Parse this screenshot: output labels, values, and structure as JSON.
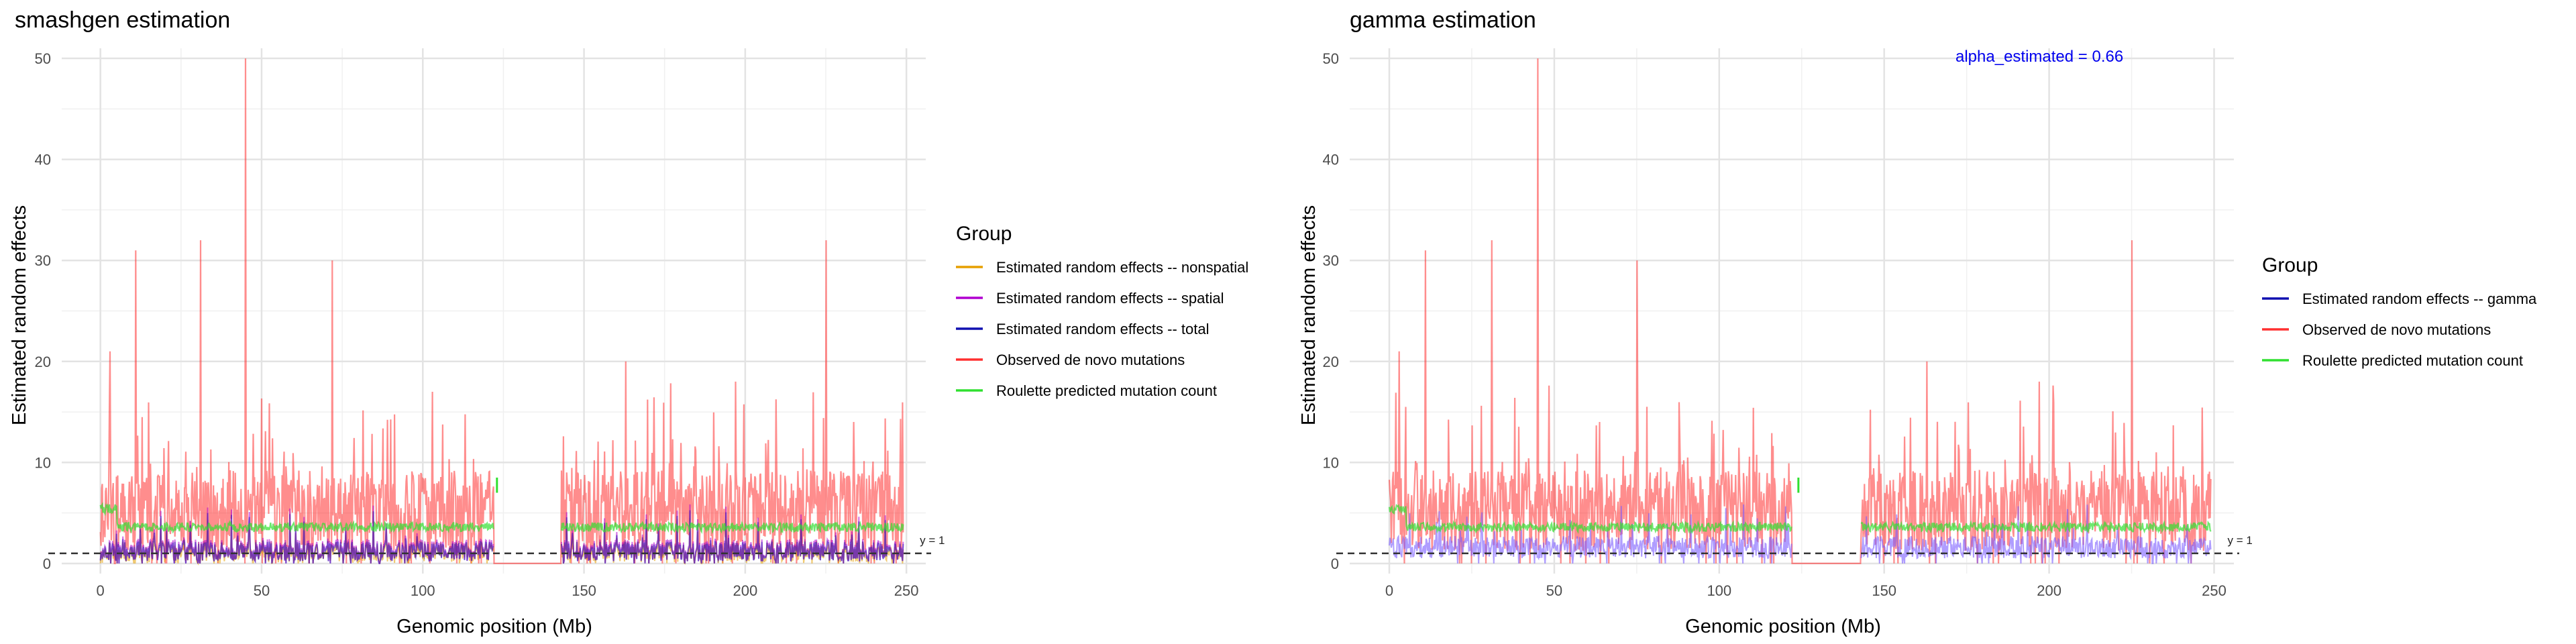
{
  "chart_data": [
    {
      "type": "line",
      "title": "smashgen estimation",
      "xlabel": "Genomic position (Mb)",
      "ylabel": "Estimated random effects",
      "xlim": [
        -12,
        256
      ],
      "ylim": [
        -1,
        51
      ],
      "x_ticks": [
        0,
        50,
        100,
        150,
        200,
        250
      ],
      "y_ticks": [
        0,
        10,
        20,
        30,
        40,
        50
      ],
      "grid": true,
      "legend_position": "right",
      "legend_title": "Group",
      "reference_line": {
        "y": 1,
        "label": "y = 1",
        "style": "dashed"
      },
      "annotation": "",
      "series": [
        {
          "name": "Estimated random effects -- nonspatial",
          "color": "#E69F00",
          "kind": "nonspatial"
        },
        {
          "name": "Estimated random effects -- spatial",
          "color": "#B000D0",
          "kind": "spatial"
        },
        {
          "name": "Estimated random effects -- total",
          "color": "#1010B0",
          "kind": "total"
        },
        {
          "name": "Observed de novo mutations",
          "color": "#FF3030",
          "kind": "observed"
        },
        {
          "name": "Roulette predicted mutation count",
          "color": "#30E030",
          "kind": "roulette"
        }
      ],
      "observed_peaks": [
        {
          "x": 3,
          "y": 21
        },
        {
          "x": 11,
          "y": 31
        },
        {
          "x": 31,
          "y": 32
        },
        {
          "x": 45,
          "y": 50
        },
        {
          "x": 72,
          "y": 30
        },
        {
          "x": 163,
          "y": 20
        },
        {
          "x": 197,
          "y": 18
        },
        {
          "x": 225,
          "y": 32
        }
      ],
      "gaps": [
        {
          "from": 122,
          "to": 143,
          "observed": 0,
          "roulette_marker": {
            "x": 123,
            "y_from": 7,
            "y_to": 8.5
          }
        }
      ],
      "typical_levels": {
        "observed_mean": 4,
        "roulette_mean": 3.6,
        "effects_mean": 1.2
      }
    },
    {
      "type": "line",
      "title": "gamma estimation",
      "xlabel": "Genomic position (Mb)",
      "ylabel": "Estimated random effects",
      "xlim": [
        -12,
        256
      ],
      "ylim": [
        -1,
        51
      ],
      "x_ticks": [
        0,
        50,
        100,
        150,
        200,
        250
      ],
      "y_ticks": [
        0,
        10,
        20,
        30,
        40,
        50
      ],
      "grid": true,
      "legend_position": "right",
      "legend_title": "Group",
      "reference_line": {
        "y": 1,
        "label": "y = 1",
        "style": "dashed"
      },
      "annotation": "alpha_estimated = 0.66",
      "annotation_color": "#0000EE",
      "series": [
        {
          "name": "Estimated random effects -- gamma",
          "color": "#1010B0",
          "kind": "gamma"
        },
        {
          "name": "Observed de novo mutations",
          "color": "#FF3030",
          "kind": "observed"
        },
        {
          "name": "Roulette predicted mutation count",
          "color": "#30E030",
          "kind": "roulette"
        }
      ],
      "observed_peaks": [
        {
          "x": 3,
          "y": 21
        },
        {
          "x": 11,
          "y": 31
        },
        {
          "x": 31,
          "y": 32
        },
        {
          "x": 45,
          "y": 50
        },
        {
          "x": 75,
          "y": 30
        },
        {
          "x": 163,
          "y": 20
        },
        {
          "x": 197,
          "y": 18
        },
        {
          "x": 225,
          "y": 32
        }
      ],
      "gaps": [
        {
          "from": 122,
          "to": 143,
          "observed": 0,
          "roulette_marker": {
            "x": 124,
            "y_from": 7,
            "y_to": 8.5
          }
        }
      ],
      "typical_levels": {
        "observed_mean": 4,
        "roulette_mean": 3.6,
        "effects_mean": 1.5
      }
    }
  ]
}
